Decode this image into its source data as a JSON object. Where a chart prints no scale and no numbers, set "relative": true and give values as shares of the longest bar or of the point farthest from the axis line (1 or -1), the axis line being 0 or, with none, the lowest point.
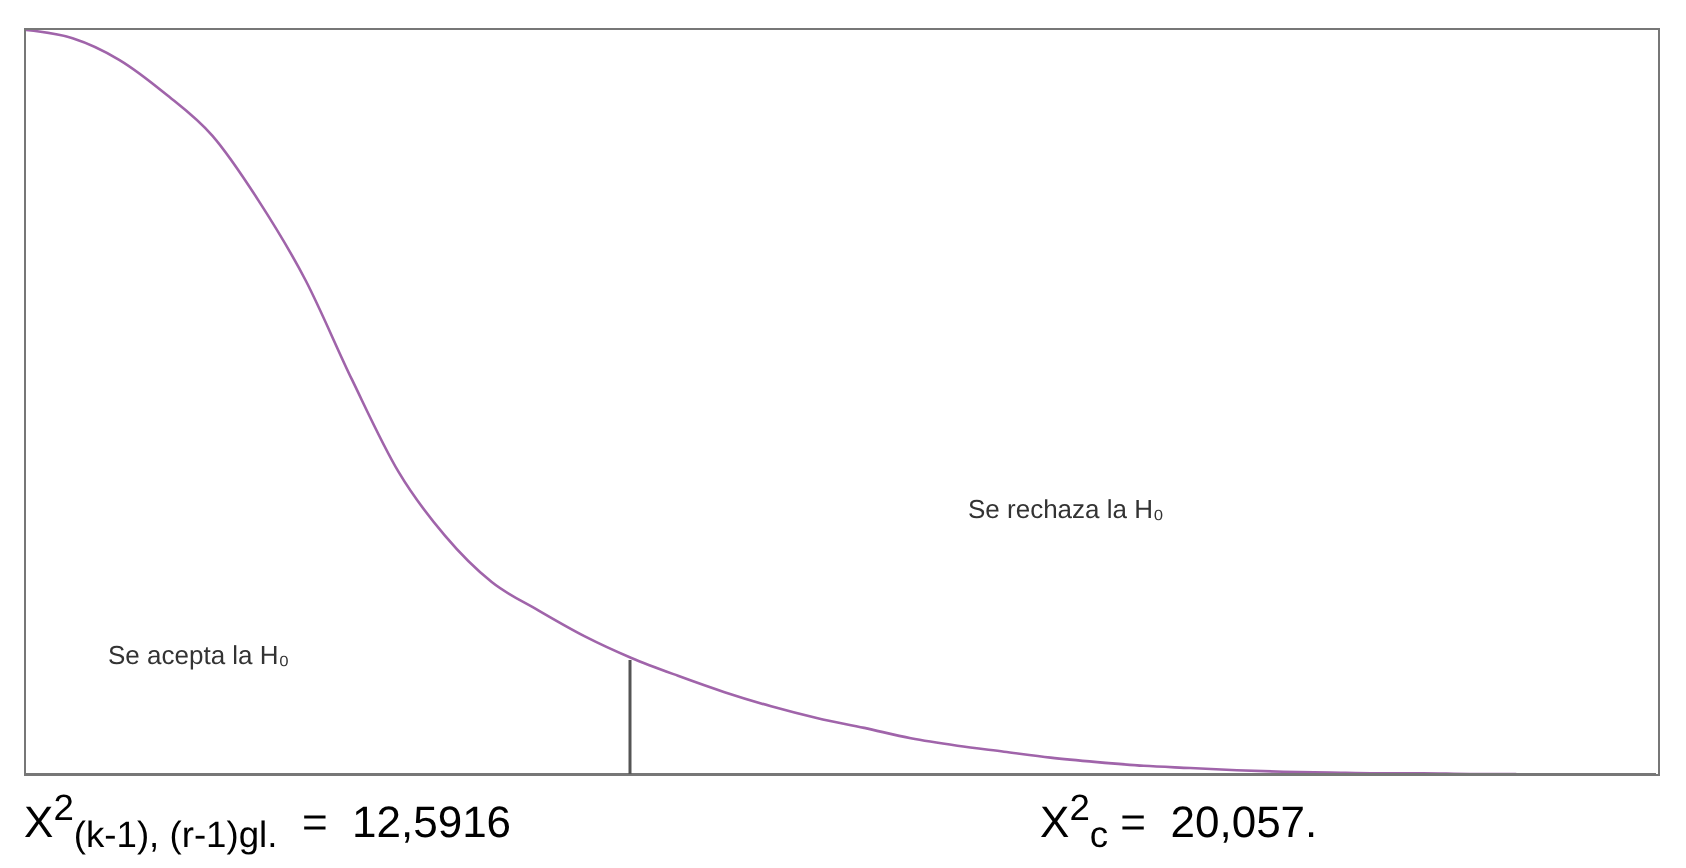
{
  "chart_data": {
    "type": "line",
    "relative": true,
    "tick_labels": false,
    "grid": false,
    "legend": false,
    "marker": "none",
    "line_style": "solid",
    "categories": [
      null,
      null,
      null,
      null,
      null,
      null,
      null,
      null,
      null,
      null,
      null,
      null,
      null,
      null,
      null,
      null,
      null,
      null,
      null,
      null,
      null,
      null,
      null,
      null,
      null,
      null,
      null,
      null,
      null,
      null,
      null,
      null,
      null,
      null,
      null,
      null
    ],
    "series": [
      {
        "color": "#a064aa",
        "values": [
          1,
          0.989,
          0.96,
          0.914,
          0.858,
          0.77,
          0.664,
          0.53,
          0.406,
          0.32,
          0.258,
          0.22,
          0.185,
          0.156,
          0.132,
          0.11,
          0.091,
          0.075,
          0.062,
          0.048,
          0.038,
          0.03,
          0.022,
          0.016,
          0.011,
          0.008,
          0.005,
          0.003,
          0.002,
          0.001,
          0.001,
          0,
          0,
          null,
          null,
          null
        ]
      }
    ],
    "annotations": [
      "Se acepta la H₀",
      "Se rechaza la H₀",
      "X$^{2}$$_{(k-1), (r-1)gl.}$  =  12,5916",
      "X$^{2}$$_{c}$ =  20,057."
    ]
  }
}
